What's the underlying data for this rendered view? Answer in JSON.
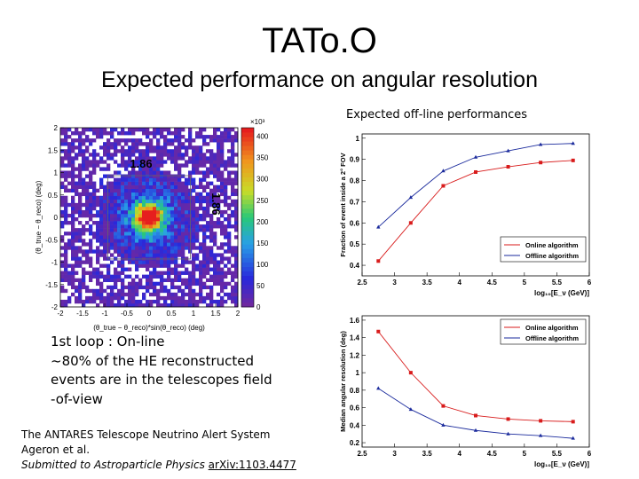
{
  "slide": {
    "title": "TATo.O",
    "subtitle": "Expected performance on angular resolution",
    "offline_heading": "Expected off-line performances",
    "note_lines": [
      "1st loop : On-line",
      "~80% of the HE reconstructed",
      "events are in the telescopes field",
      "-of-view"
    ],
    "reference": {
      "line1": "The ANTARES Telescope Neutrino Alert System",
      "line2": "Ageron et al.",
      "line3_prefix": "Submitted to Astroparticle Physics ",
      "line3_link": "arXiv:1103.4477"
    }
  },
  "colors": {
    "online": "#d81b1b",
    "offline": "#1a2a9c"
  },
  "chart_data": [
    {
      "type": "heatmap",
      "xlabel": "(θ_true − θ_reco)*sin(θ_reco) (deg)",
      "ylabel": "(θ_true − θ_reco) (deg)",
      "xlim": [
        -2,
        2
      ],
      "ylim": [
        -2,
        2
      ],
      "x_ticks": [
        "-2",
        "-1.5",
        "-1",
        "-0.5",
        "0",
        "0.5",
        "1",
        "1.5",
        "2"
      ],
      "y_ticks": [
        "-2",
        "-1.5",
        "-1",
        "-0.5",
        "0",
        "0.5",
        "1",
        "1.5",
        "2"
      ],
      "colorbar_ticks": [
        "0",
        "50",
        "100",
        "150",
        "200",
        "250",
        "300",
        "350",
        "400"
      ],
      "colorbar_exp": "×10³",
      "box_width_deg": 1.86,
      "box_labels": [
        "1.86",
        "1.86"
      ]
    },
    {
      "type": "line",
      "ylabel": "Fraction of event inside a 2° FOV",
      "xlabel": "log₁₀[E_ν (GeV)]",
      "xlim": [
        2.5,
        6
      ],
      "ylim": [
        0.35,
        1.02
      ],
      "x_ticks": [
        "2.5",
        "3",
        "3.5",
        "4",
        "4.5",
        "5",
        "5.5",
        "6"
      ],
      "y_ticks": [
        "0.4",
        "0.5",
        "0.6",
        "0.7",
        "0.8",
        "0.9",
        "1"
      ],
      "legend": "bottom-right",
      "x": [
        2.75,
        3.25,
        3.75,
        4.25,
        4.75,
        5.25,
        5.75
      ],
      "series": [
        {
          "name": "Online algorithm",
          "values": [
            0.42,
            0.6,
            0.775,
            0.84,
            0.865,
            0.885,
            0.895
          ]
        },
        {
          "name": "Offline algorithm",
          "values": [
            0.58,
            0.72,
            0.845,
            0.91,
            0.94,
            0.97,
            0.975
          ]
        }
      ]
    },
    {
      "type": "line",
      "ylabel": "Median angular resolution (deg)",
      "xlabel": "log₁₀[E_ν (GeV)]",
      "xlim": [
        2.5,
        6
      ],
      "ylim": [
        0.15,
        1.65
      ],
      "x_ticks": [
        "2.5",
        "3",
        "3.5",
        "4",
        "4.5",
        "5",
        "5.5",
        "6"
      ],
      "y_ticks": [
        "0.2",
        "0.4",
        "0.6",
        "0.8",
        "1",
        "1.2",
        "1.4",
        "1.6"
      ],
      "legend": "top-right",
      "x": [
        2.75,
        3.25,
        3.75,
        4.25,
        4.75,
        5.25,
        5.75
      ],
      "series": [
        {
          "name": "Online algorithm",
          "values": [
            1.47,
            1.0,
            0.62,
            0.51,
            0.47,
            0.45,
            0.44
          ]
        },
        {
          "name": "Offline algorithm",
          "values": [
            0.82,
            0.58,
            0.4,
            0.34,
            0.3,
            0.28,
            0.25
          ]
        }
      ]
    }
  ]
}
